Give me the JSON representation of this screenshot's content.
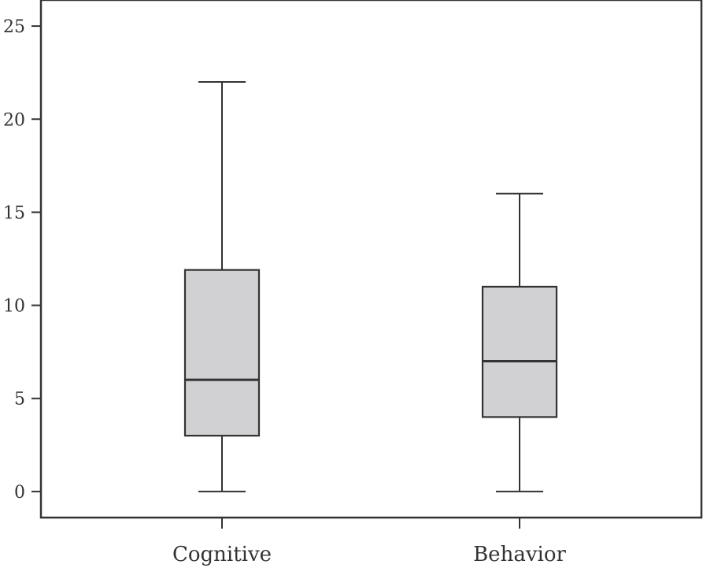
{
  "chart_data": {
    "type": "boxplot",
    "title": "",
    "xlabel": "",
    "ylabel": "",
    "ylim": [
      -1.4,
      26.4
    ],
    "yticks": [
      0,
      5,
      10,
      15,
      20,
      25
    ],
    "grid": false,
    "legend": "none",
    "categories": [
      "Cognitive",
      "Behavior"
    ],
    "boxes": [
      {
        "category": "Cognitive",
        "min": 0,
        "q1": 3,
        "median": 6,
        "q3": 11.9,
        "max": 22
      },
      {
        "category": "Behavior",
        "min": 0,
        "q1": 4,
        "median": 7,
        "q3": 11,
        "max": 16
      }
    ],
    "colors": {
      "box_fill": "#d1d1d3",
      "stroke": "#333333"
    }
  }
}
